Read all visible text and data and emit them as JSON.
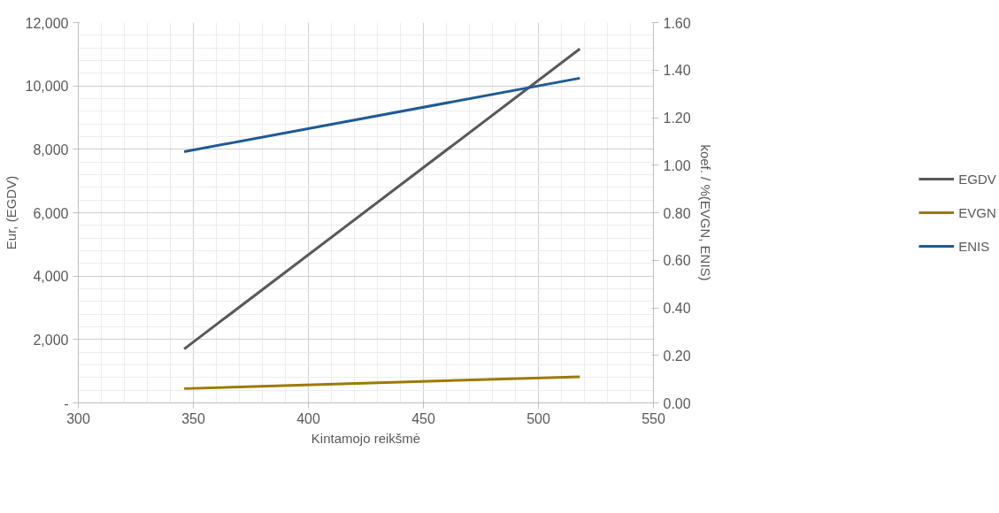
{
  "chart_data": {
    "type": "line",
    "xlabel": "Kintamojo reikšmė",
    "ylabel": "Eur, (EGDV)",
    "y2label": "koef. / %(EVGN, ENIS)",
    "x": [
      346,
      518
    ],
    "series": [
      {
        "name": "EGDV",
        "color": "#595959",
        "values": [
          1700,
          11170
        ]
      },
      {
        "name": "EVGN",
        "color": "#9c7a00",
        "values": [
          0.06,
          0.11
        ],
        "axis": "y2"
      },
      {
        "name": "ENIS",
        "color": "#1f5a96",
        "values": [
          1.057,
          1.366
        ],
        "axis": "y2"
      }
    ],
    "xlim": [
      300,
      550
    ],
    "xticks": [
      300,
      350,
      400,
      450,
      500,
      550
    ],
    "ylim": [
      0,
      12000
    ],
    "yticks": [
      {
        "value": 0,
        "label": "-"
      },
      {
        "value": 2000,
        "label": "2,000"
      },
      {
        "value": 4000,
        "label": "4,000"
      },
      {
        "value": 6000,
        "label": "6,000"
      },
      {
        "value": 8000,
        "label": "8,000"
      },
      {
        "value": 10000,
        "label": "10,000"
      },
      {
        "value": 12000,
        "label": "12,000"
      }
    ],
    "y2lim": [
      0,
      1.6
    ],
    "y2ticks": [
      {
        "value": 0,
        "label": "0.00"
      },
      {
        "value": 0.2,
        "label": "0.20"
      },
      {
        "value": 0.4,
        "label": "0.40"
      },
      {
        "value": 0.6,
        "label": "0.60"
      },
      {
        "value": 0.8,
        "label": "0.80"
      },
      {
        "value": 1.0,
        "label": "1.00"
      },
      {
        "value": 1.2,
        "label": "1.20"
      },
      {
        "value": 1.4,
        "label": "1.40"
      },
      {
        "value": 1.6,
        "label": "1.60"
      }
    ],
    "grid": true,
    "legend": "right",
    "marker": "none",
    "line_style": "solid"
  }
}
